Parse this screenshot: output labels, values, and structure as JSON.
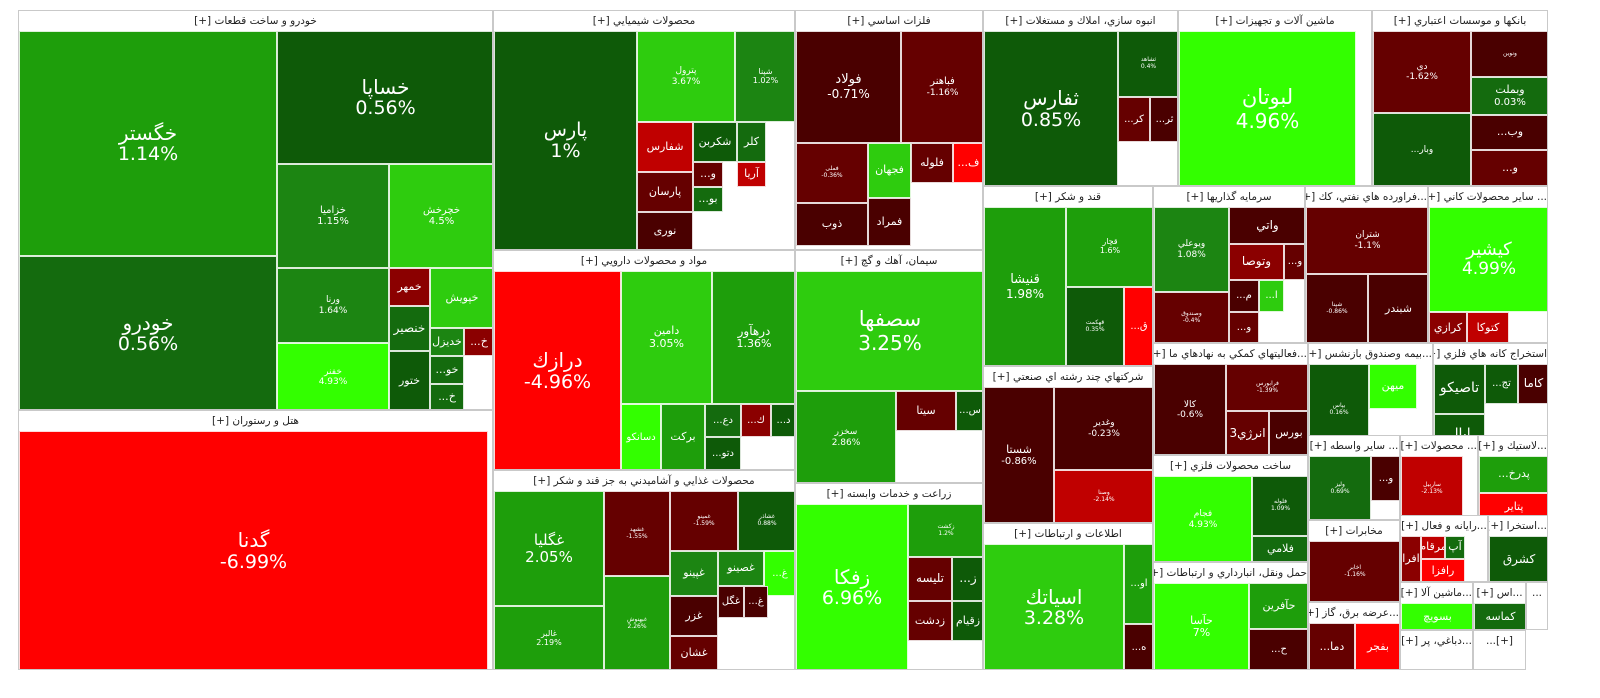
{
  "colors": {
    "g_strong": "#33ff00",
    "g_bright": "#2ecc0e",
    "g_mid": "#1e9e0b",
    "g_med": "#1c8512",
    "g_dark": "#146b0e",
    "g_darker": "#0e5a08",
    "r_strong": "#ff0000",
    "r_mid": "#c00000",
    "r_dark": "#8b0000",
    "r_darker": "#650000",
    "r_deep": "#4a0000"
  },
  "chart_data": {
    "type": "treemap",
    "title": "",
    "sectors": [
      {
        "name": "خودرو و ساخت قطعات [+]",
        "stocks": [
          {
            "name": "خگستر",
            "change": "1.14%"
          },
          {
            "name": "خودرو",
            "change": "0.56%"
          },
          {
            "name": "خساپا",
            "change": "0.56%"
          },
          {
            "name": "خزامیا",
            "change": "1.15%"
          },
          {
            "name": "خچرخش",
            "change": "4.5%"
          },
          {
            "name": "ورنا",
            "change": "1.64%"
          },
          {
            "name": "خمهر",
            "change": ""
          },
          {
            "name": "خپویش",
            "change": ""
          },
          {
            "name": "خفنر",
            "change": "4.93%"
          },
          {
            "name": "خنصیر",
            "change": ""
          },
          {
            "name": "خدیزل",
            "change": ""
          },
          {
            "name": "...خ",
            "change": ""
          },
          {
            "name": "...خو",
            "change": ""
          },
          {
            "name": "ختور",
            "change": ""
          },
          {
            "name": "...خ",
            "change": ""
          }
        ]
      },
      {
        "name": "هتل و رستوران [+]",
        "stocks": [
          {
            "name": "گدنا",
            "change": "-6.99%"
          }
        ]
      },
      {
        "name": "محصولات شيميايي [+]",
        "stocks": [
          {
            "name": "پارس",
            "change": "1%"
          },
          {
            "name": "پترول",
            "change": "3.67%"
          },
          {
            "name": "شپنا",
            "change": "1.02%"
          },
          {
            "name": "شفارس",
            "change": ""
          },
          {
            "name": "شکربن",
            "change": ""
          },
          {
            "name": "کلر",
            "change": ""
          },
          {
            "name": "پارسان",
            "change": ""
          },
          {
            "name": "...و",
            "change": ""
          },
          {
            "name": "آریا",
            "change": ""
          },
          {
            "name": "...بو",
            "change": ""
          },
          {
            "name": "نوری",
            "change": ""
          }
        ]
      },
      {
        "name": "مواد و محصولات دارويي [+]",
        "stocks": [
          {
            "name": "درازك",
            "change": "-4.96%"
          },
          {
            "name": "دامين",
            "change": "3.05%"
          },
          {
            "name": "درهآور",
            "change": "1.36%"
          },
          {
            "name": "دسانكو",
            "change": ""
          },
          {
            "name": "بركت",
            "change": ""
          },
          {
            "name": "...دع",
            "change": ""
          },
          {
            "name": "...ك",
            "change": ""
          },
          {
            "name": "...د",
            "change": ""
          },
          {
            "name": "...دتو",
            "change": ""
          }
        ]
      },
      {
        "name": "محصولات غذايي و آشاميدني به جز قند و شكر [+]",
        "stocks": [
          {
            "name": "غگلیا",
            "change": "2.05%"
          },
          {
            "name": "غالبر",
            "change": "2.19%"
          },
          {
            "name": "غشهد",
            "change": "-1.55%"
          },
          {
            "name": "غبهنوش",
            "change": "2.26%"
          },
          {
            "name": "غمینو",
            "change": "-1.59%"
          },
          {
            "name": "غشاذر",
            "change": "0.88%"
          },
          {
            "name": "غپینو",
            "change": ""
          },
          {
            "name": "غصينو",
            "change": ""
          },
          {
            "name": "...غ",
            "change": ""
          },
          {
            "name": "غگل",
            "change": ""
          },
          {
            "name": "...غ",
            "change": ""
          },
          {
            "name": "غزر",
            "change": ""
          },
          {
            "name": "غشان",
            "change": ""
          }
        ]
      },
      {
        "name": "فلزات اساسي [+]",
        "stocks": [
          {
            "name": "فولاد",
            "change": "-0.71%"
          },
          {
            "name": "فباهنر",
            "change": "-1.16%"
          },
          {
            "name": "فملی",
            "change": "-0.36%"
          },
          {
            "name": "فجهان",
            "change": ""
          },
          {
            "name": "فلوله",
            "change": ""
          },
          {
            "name": "...ف",
            "change": ""
          },
          {
            "name": "فمراد",
            "change": ""
          },
          {
            "name": "ذوب",
            "change": ""
          }
        ]
      },
      {
        "name": "سيمان، آهك و گچ [+]",
        "stocks": [
          {
            "name": "سصفها",
            "change": "3.25%"
          },
          {
            "name": "سخزر",
            "change": "2.86%"
          },
          {
            "name": "سيتا",
            "change": ""
          },
          {
            "name": "...س",
            "change": ""
          }
        ]
      },
      {
        "name": "زراعت و خدمات وابسته [+]",
        "stocks": [
          {
            "name": "زفكا",
            "change": "6.96%"
          },
          {
            "name": "زکشت",
            "change": "1.2%"
          },
          {
            "name": "تليسه",
            "change": ""
          },
          {
            "name": "...ز",
            "change": ""
          },
          {
            "name": "زدشت",
            "change": ""
          },
          {
            "name": "زقيام",
            "change": ""
          }
        ]
      },
      {
        "name": "انبوه سازي، املاك و مستغلات [+]",
        "stocks": [
          {
            "name": "ثفارس",
            "change": "0.85%"
          },
          {
            "name": "ثشاهد",
            "change": "0.4%"
          },
          {
            "name": "...كر",
            "change": ""
          },
          {
            "name": "...ثر",
            "change": ""
          }
        ]
      },
      {
        "name": "ماشين آلات و تجهيزات [+]",
        "stocks": [
          {
            "name": "لبوتان",
            "change": "4.96%"
          }
        ]
      },
      {
        "name": "بانكها و موسسات اعتباري [+]",
        "stocks": [
          {
            "name": "دي",
            "change": "-1.62%"
          },
          {
            "name": "ونوين",
            "change": ""
          },
          {
            "name": "وبملت",
            "change": "0.03%"
          },
          {
            "name": "...وبار",
            "change": ""
          },
          {
            "name": "...وب",
            "change": ""
          },
          {
            "name": "...و",
            "change": ""
          }
        ]
      },
      {
        "name": "قند و شكر [+]",
        "stocks": [
          {
            "name": "قنيشا",
            "change": "1.98%"
          },
          {
            "name": "قچار",
            "change": "1.6%"
          },
          {
            "name": "قهکمت",
            "change": "0.35%"
          },
          {
            "name": "...ق",
            "change": ""
          }
        ]
      },
      {
        "name": "سرمايه گذاريها [+]",
        "stocks": [
          {
            "name": "ويوعلي",
            "change": "1.08%"
          },
          {
            "name": "واتي",
            "change": ""
          },
          {
            "name": "وتوصا",
            "change": ""
          },
          {
            "name": "...و",
            "change": ""
          },
          {
            "name": "وصندوق",
            "change": "-0.4%"
          },
          {
            "name": "...م",
            "change": ""
          },
          {
            "name": "...ا",
            "change": ""
          },
          {
            "name": "...و",
            "change": ""
          }
        ]
      },
      {
        "name": "...فراورده هاي نفتي، كك [+]",
        "stocks": [
          {
            "name": "شتران",
            "change": "-1.1%"
          },
          {
            "name": "شپنا",
            "change": "-0.86%"
          },
          {
            "name": "شبندر",
            "change": ""
          }
        ]
      },
      {
        "name": "... ساير محصولات كاني [+]",
        "stocks": [
          {
            "name": "كيشير",
            "change": "4.99%"
          },
          {
            "name": "كرازي",
            "change": ""
          },
          {
            "name": "كتوكا",
            "change": ""
          }
        ]
      },
      {
        "name": "شركتهاي چند رشته اي صنعتي [+]",
        "stocks": [
          {
            "name": "شستا",
            "change": "-0.86%"
          },
          {
            "name": "وغدير",
            "change": "-0.23%"
          },
          {
            "name": "وصنا",
            "change": "-2.14%"
          }
        ]
      },
      {
        "name": "اطلاعات و ارتباطات [+]",
        "stocks": [
          {
            "name": "اسياتك",
            "change": "3.28%"
          },
          {
            "name": "...او",
            "change": ""
          },
          {
            "name": "...ه",
            "change": ""
          }
        ]
      },
      {
        "name": "...فعاليتهاي كمكي به نهادهاي ما [+]",
        "stocks": [
          {
            "name": "كالا",
            "change": "-0.6%"
          },
          {
            "name": "فرابورس",
            "change": "-1.39%"
          },
          {
            "name": "انرژي3",
            "change": ""
          },
          {
            "name": "بورس",
            "change": ""
          }
        ]
      },
      {
        "name": "...بيمه وصندوق بازنشس [+]",
        "stocks": [
          {
            "name": "بپاس",
            "change": "0.16%"
          },
          {
            "name": "ميهن",
            "change": ""
          }
        ]
      },
      {
        "name": "استخراج كانه هاي فلزي [+]",
        "stocks": [
          {
            "name": "تاصيكو",
            "change": ""
          },
          {
            "name": "...تج",
            "change": ""
          },
          {
            "name": "كاما",
            "change": ""
          },
          {
            "name": "ايال",
            "change": ""
          }
        ]
      },
      {
        "name": "ساخت محصولات فلزي [+]",
        "stocks": [
          {
            "name": "فجام",
            "change": "4.93%"
          },
          {
            "name": "فلوله",
            "change": "1.09%"
          },
          {
            "name": "فلامي",
            "change": ""
          }
        ]
      },
      {
        "name": "... ساير واسطه [+]",
        "stocks": [
          {
            "name": "ولیز",
            "change": "0.69%"
          },
          {
            "name": "...و",
            "change": ""
          }
        ]
      },
      {
        "name": "... محصولات [+]",
        "stocks": [
          {
            "name": "ساربيل",
            "change": "-2.13%"
          }
        ]
      },
      {
        "name": "...لاستيك و [+]",
        "stocks": [
          {
            "name": "...پدرخ",
            "change": ""
          },
          {
            "name": "پتاير",
            "change": ""
          }
        ]
      },
      {
        "name": "حمل ونقل، انبارداري و ارتباطات [+]",
        "stocks": [
          {
            "name": "حآسا",
            "change": "7%"
          },
          {
            "name": "حآفرين",
            "change": ""
          },
          {
            "name": "...ح",
            "change": ""
          }
        ]
      },
      {
        "name": "مخابرات [+]",
        "stocks": [
          {
            "name": "اخابر",
            "change": "-1.16%"
          }
        ]
      },
      {
        "name": "...رايانه و فعال [+]",
        "stocks": [
          {
            "name": "مرقام",
            "change": ""
          },
          {
            "name": "آپ",
            "change": ""
          },
          {
            "name": "افرا",
            "change": ""
          },
          {
            "name": "رافزا",
            "change": ""
          }
        ]
      },
      {
        "name": "...استخرا [+]",
        "stocks": [
          {
            "name": "كشرق",
            "change": ""
          }
        ]
      },
      {
        "name": "...عرضه برق، گاز [+]",
        "stocks": [
          {
            "name": "...دما",
            "change": ""
          },
          {
            "name": "بفجر",
            "change": ""
          }
        ]
      },
      {
        "name": "...ماشين آلا [+]",
        "stocks": [
          {
            "name": "بسويچ",
            "change": ""
          }
        ]
      },
      {
        "name": "...اس [+]",
        "stocks": [
          {
            "name": "كماسه",
            "change": ""
          }
        ]
      },
      {
        "name": "...",
        "stocks": []
      },
      {
        "name": "[+]...",
        "stocks": []
      },
      {
        "name": "...دباغي، پر [+]",
        "stocks": []
      }
    ]
  }
}
